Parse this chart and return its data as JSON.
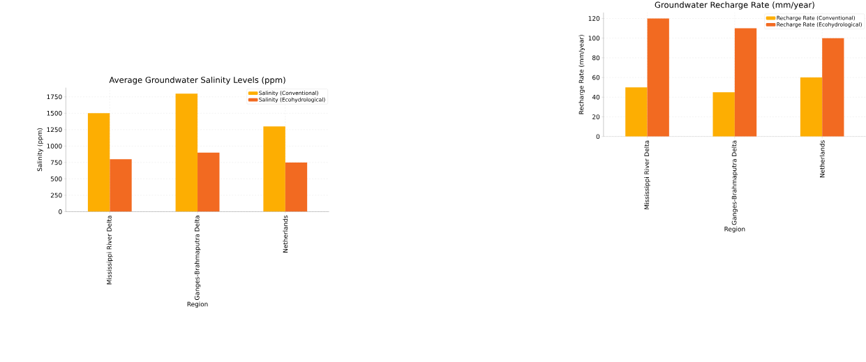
{
  "chart_data": [
    {
      "type": "bar",
      "title": "Average Groundwater Salinity Levels (ppm)",
      "xlabel": "Region",
      "ylabel": "Salinity (ppm)",
      "categories": [
        "Mississippi River Delta",
        "Ganges-Brahmaputra Delta",
        "Netherlands"
      ],
      "series": [
        {
          "name": "Salinity (Conventional)",
          "color": "#fdae02",
          "values": [
            1500,
            1800,
            1300
          ]
        },
        {
          "name": "Salinity (Ecohydrological)",
          "color": "#f26a21",
          "values": [
            800,
            900,
            750
          ]
        }
      ],
      "ylim": [
        0,
        1890
      ],
      "yticks": [
        0,
        250,
        500,
        750,
        1000,
        1250,
        1500,
        1750
      ],
      "grid": true,
      "legend": "top right"
    },
    {
      "type": "bar",
      "title": "Groundwater Recharge Rate (mm/year)",
      "xlabel": "Region",
      "ylabel": "Recharge Rate (mm/year)",
      "categories": [
        "Mississippi River Delta",
        "Ganges-Brahmaputra Delta",
        "Netherlands"
      ],
      "series": [
        {
          "name": "Recharge Rate (Conventional)",
          "color": "#fdae02",
          "values": [
            50,
            45,
            60
          ]
        },
        {
          "name": "Recharge Rate (Ecohydrological)",
          "color": "#f26a21",
          "values": [
            120,
            110,
            100
          ]
        }
      ],
      "ylim": [
        0,
        126
      ],
      "yticks": [
        0,
        20,
        40,
        60,
        80,
        100,
        120
      ],
      "grid": true,
      "legend": "top right"
    }
  ]
}
